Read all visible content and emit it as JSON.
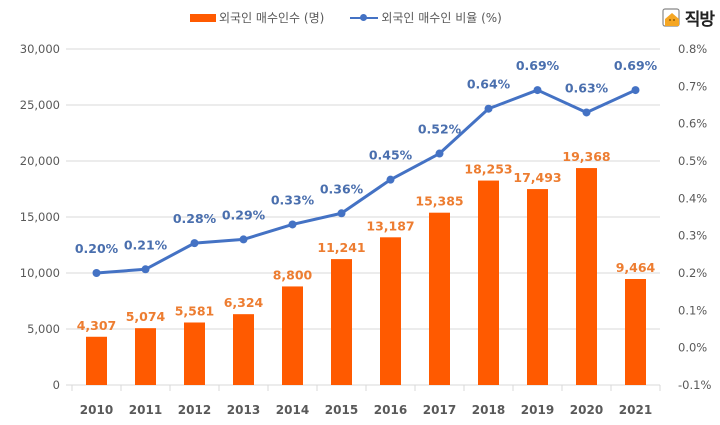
{
  "brand": {
    "name": "직방"
  },
  "colors": {
    "bar": "#ff5a00",
    "bar_label": "#ed7d31",
    "line": "#4472c4",
    "line_label": "#4a6fae",
    "grid": "#d9d9d9",
    "axis_text": "#595959"
  },
  "chart_data": {
    "type": "bar+line",
    "title": "",
    "categories": [
      "2010",
      "2011",
      "2012",
      "2013",
      "2014",
      "2015",
      "2016",
      "2017",
      "2018",
      "2019",
      "2020",
      "2021"
    ],
    "series": [
      {
        "name": "외국인 매수인수 (명)",
        "type": "bar",
        "axis": "left",
        "values": [
          4307,
          5074,
          5581,
          6324,
          8800,
          11241,
          13187,
          15385,
          18253,
          17493,
          19368,
          9464
        ],
        "labels": [
          "4,307",
          "5,074",
          "5,581",
          "6,324",
          "8,800",
          "11,241",
          "13,187",
          "15,385",
          "18,253",
          "17,493",
          "19,368",
          "9,464"
        ]
      },
      {
        "name": "외국인 매수인 비율 (%)",
        "type": "line",
        "axis": "right",
        "values": [
          0.2,
          0.21,
          0.28,
          0.29,
          0.33,
          0.36,
          0.45,
          0.52,
          0.64,
          0.69,
          0.63,
          0.69
        ],
        "labels": [
          "0.20%",
          "0.21%",
          "0.28%",
          "0.29%",
          "0.33%",
          "0.36%",
          "0.45%",
          "0.52%",
          "0.64%",
          "0.69%",
          "0.63%",
          "0.69%"
        ]
      }
    ],
    "y_left": {
      "range": [
        0,
        30000
      ],
      "ticks": [
        0,
        5000,
        10000,
        15000,
        20000,
        25000,
        30000
      ],
      "tick_labels": [
        "0",
        "5,000",
        "10,000",
        "15,000",
        "20,000",
        "25,000",
        "30,000"
      ]
    },
    "y_right": {
      "range": [
        -0.1,
        0.8
      ],
      "ticks": [
        -0.1,
        0.0,
        0.1,
        0.2,
        0.3,
        0.4,
        0.5,
        0.6,
        0.7,
        0.8
      ],
      "tick_labels": [
        "-0.1%",
        "0.0%",
        "0.1%",
        "0.2%",
        "0.3%",
        "0.4%",
        "0.5%",
        "0.6%",
        "0.7%",
        "0.8%"
      ]
    },
    "grid": true,
    "legend": "top-center"
  }
}
